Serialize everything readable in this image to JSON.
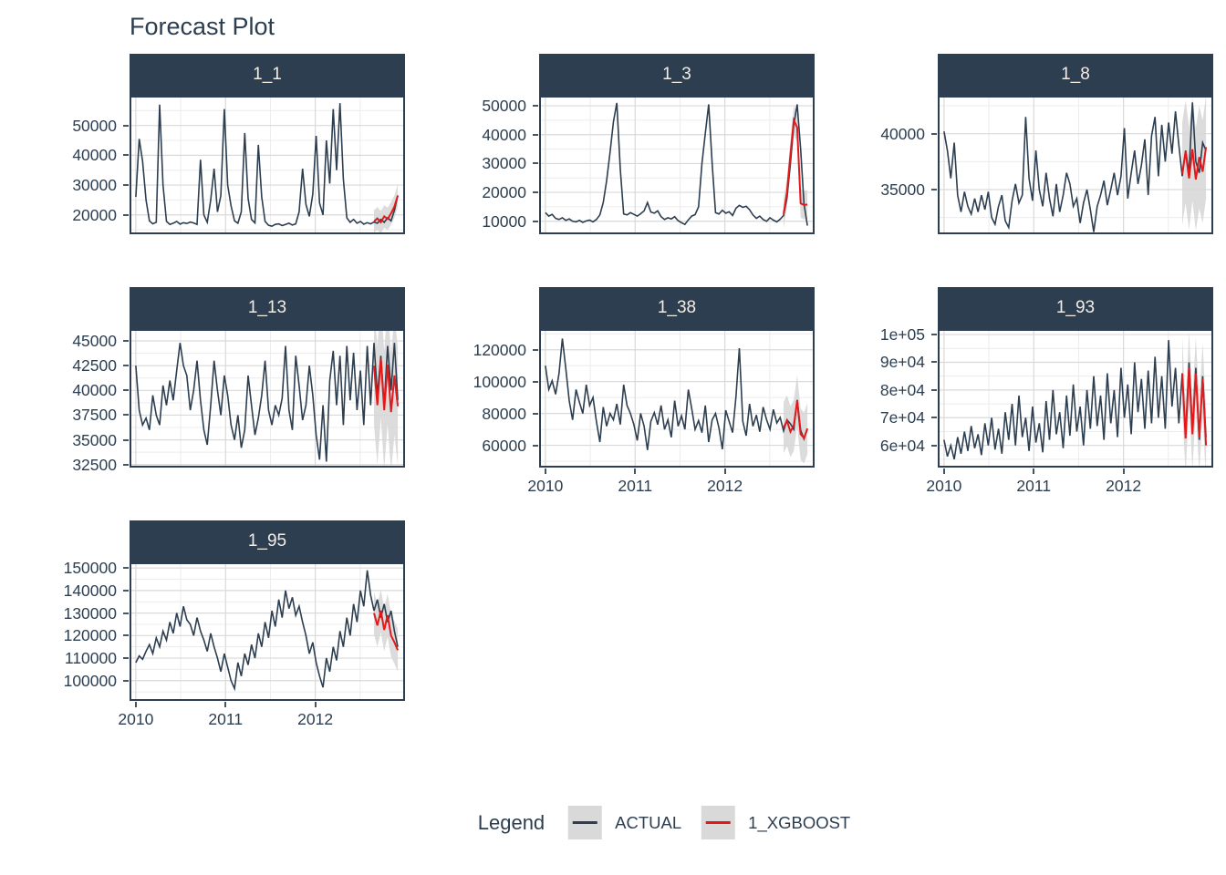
{
  "title": "Forecast Plot",
  "colors": {
    "actual_line": "#2c3e50",
    "forecast_line": "#e31a1c",
    "ribbon": "#d6d6d6",
    "grid_major": "#d9d9d9",
    "grid_minor": "#ececec",
    "strip_bg": "#2c3e50",
    "strip_text": "#f3eee5",
    "panel_border": "#2c3e50",
    "axis_text": "#2c3e50"
  },
  "legend": {
    "title": "Legend",
    "entries": [
      {
        "label": "ACTUAL",
        "color": "#2c3e50"
      },
      {
        "label": "1_XGBOOST",
        "color": "#e31a1c"
      }
    ]
  },
  "chart_data": {
    "type": "line",
    "title": "Forecast Plot",
    "x_data_range": [
      2010.0,
      2012.92
    ],
    "x_domain": [
      2009.93,
      2013.0
    ],
    "xticks": [
      2010,
      2011,
      2012
    ],
    "xtick_labels": [
      "2010",
      "2011",
      "2012"
    ],
    "grid": true,
    "legend_position": "bottom",
    "facets": [
      {
        "name": "1_1",
        "col": 0,
        "row": 0,
        "show_x_axis": false,
        "ylim": [
          13500,
          60000
        ],
        "yticks": [
          20000,
          30000,
          40000,
          50000
        ],
        "ytick_labels": [
          "20000",
          "30000",
          "40000",
          "50000"
        ],
        "actual": [
          26000,
          45500,
          38000,
          25000,
          18000,
          17000,
          17500,
          57000,
          30000,
          17800,
          16800,
          17200,
          17800,
          16900,
          17400,
          17100,
          17600,
          17300,
          16800,
          38500,
          20000,
          17500,
          25000,
          35500,
          21000,
          26500,
          55500,
          30000,
          23000,
          18000,
          17200,
          21000,
          47500,
          25500,
          18500,
          17300,
          43500,
          26000,
          17800,
          16500,
          16200,
          16800,
          17000,
          16400,
          16800,
          17200,
          16600,
          17000,
          21000,
          35500,
          23500,
          19500,
          27000,
          46500,
          24000,
          20000,
          45000,
          30500,
          55500,
          35000,
          57500,
          32000,
          19000,
          17500,
          18500,
          17200,
          17800,
          16900,
          17400,
          17000,
          17600,
          17200,
          18500,
          17500,
          19000,
          18000,
          21500,
          26500
        ],
        "forecast_start": 70,
        "forecast": [
          17800,
          18800,
          17500,
          19500,
          18600,
          20500,
          22800,
          26500
        ],
        "ci_delta": 3800
      },
      {
        "name": "1_3",
        "col": 1,
        "row": 0,
        "show_x_axis": false,
        "ylim": [
          5500,
          53500
        ],
        "yticks": [
          10000,
          20000,
          30000,
          40000,
          50000
        ],
        "ytick_labels": [
          "10000",
          "20000",
          "30000",
          "40000",
          "50000"
        ],
        "actual": [
          13000,
          11800,
          12400,
          11000,
          10600,
          11200,
          10300,
          10800,
          10000,
          9800,
          10300,
          9600,
          10100,
          10400,
          9800,
          10600,
          12200,
          16500,
          24000,
          34000,
          44500,
          51000,
          28000,
          12500,
          12200,
          13000,
          12400,
          11800,
          12600,
          13600,
          16500,
          13200,
          12800,
          13600,
          11600,
          10600,
          11200,
          10800,
          11600,
          10200,
          9500,
          8900,
          10500,
          11800,
          12300,
          15000,
          30000,
          40500,
          50500,
          30000,
          13000,
          12500,
          13800,
          12800,
          13300,
          12000,
          14500,
          15500,
          14800,
          15200,
          14000,
          12200,
          11000,
          11800,
          10600,
          10000,
          11200,
          10400,
          9800,
          10700,
          12000,
          18000,
          30000,
          43500,
          50500,
          35000,
          16000,
          8500
        ],
        "forecast_start": 70,
        "forecast": [
          12500,
          20000,
          33000,
          45000,
          42500,
          16200,
          15600,
          15800
        ],
        "ci_delta": 5000
      },
      {
        "name": "1_8",
        "col": 2,
        "row": 0,
        "show_x_axis": false,
        "ylim": [
          31000,
          43400
        ],
        "yticks": [
          35000,
          40000
        ],
        "ytick_labels": [
          "35000",
          "40000"
        ],
        "actual": [
          40200,
          38500,
          36000,
          39200,
          34500,
          33000,
          34800,
          33500,
          32800,
          34200,
          33000,
          34500,
          33200,
          34800,
          32500,
          31900,
          33500,
          34500,
          32200,
          31600,
          34000,
          35500,
          33800,
          34500,
          41500,
          36000,
          34000,
          38500,
          35000,
          33500,
          36500,
          34200,
          32600,
          35500,
          33000,
          34500,
          36500,
          35500,
          33500,
          34200,
          32000,
          33800,
          35000,
          33200,
          31200,
          33500,
          34500,
          35800,
          33600,
          35000,
          36500,
          34500,
          36200,
          40500,
          34200,
          36500,
          38500,
          35500,
          37200,
          39500,
          34500,
          39800,
          41500,
          36200,
          40800,
          37500,
          41000,
          38200,
          42000,
          39000,
          36200,
          38500,
          36500,
          42800,
          37500,
          36500,
          39200,
          38500
        ],
        "forecast_start": 70,
        "forecast": [
          36400,
          38400,
          36000,
          38600,
          35900,
          37900,
          36600,
          38800
        ],
        "ci_delta": 4600
      },
      {
        "name": "1_13",
        "col": 0,
        "row": 1,
        "show_x_axis": false,
        "ylim": [
          32200,
          46200
        ],
        "yticks": [
          32500,
          35000,
          37500,
          40000,
          42500,
          45000
        ],
        "ytick_labels": [
          "32500",
          "35000",
          "37500",
          "40000",
          "42500",
          "45000"
        ],
        "actual": [
          42500,
          38000,
          36500,
          37200,
          36000,
          39500,
          37500,
          36500,
          40500,
          38500,
          41000,
          39000,
          42000,
          44800,
          42500,
          41500,
          38000,
          40000,
          43000,
          39000,
          36000,
          34500,
          38500,
          43000,
          40000,
          37500,
          41500,
          39500,
          36500,
          35000,
          37500,
          34200,
          36000,
          41500,
          38500,
          35500,
          37200,
          39500,
          43000,
          38000,
          36500,
          38500,
          37500,
          39200,
          44500,
          38000,
          36000,
          43500,
          40500,
          37000,
          38500,
          42500,
          39500,
          35500,
          33000,
          38500,
          32800,
          41000,
          44000,
          38500,
          43500,
          36500,
          44500,
          39000,
          43800,
          38000,
          42000,
          36500,
          44500,
          38500,
          44800,
          39500,
          43500,
          38500,
          44500,
          40000,
          44800,
          39000
        ],
        "forecast_start": 70,
        "forecast": [
          42500,
          38500,
          43200,
          38000,
          42600,
          37800,
          41500,
          38400
        ],
        "ci_delta": 6000
      },
      {
        "name": "1_38",
        "col": 1,
        "row": 1,
        "show_x_axis": true,
        "ylim": [
          46000,
          133000
        ],
        "yticks": [
          60000,
          80000,
          100000,
          120000
        ],
        "ytick_labels": [
          "60000",
          "80000",
          "100000",
          "120000"
        ],
        "actual": [
          110000,
          95000,
          100500,
          92000,
          105000,
          127000,
          108000,
          88000,
          76000,
          95000,
          87000,
          80000,
          98000,
          85000,
          90000,
          75000,
          62000,
          84000,
          72000,
          80000,
          76000,
          86000,
          73000,
          98000,
          85000,
          80000,
          73000,
          63000,
          80000,
          72000,
          57000,
          75000,
          80500,
          73000,
          85000,
          70000,
          76000,
          65000,
          88000,
          72000,
          78500,
          70000,
          95000,
          83000,
          70000,
          75500,
          68000,
          85000,
          62000,
          76000,
          80000,
          71000,
          57500,
          82000,
          75000,
          68000,
          90500,
          121000,
          75000,
          66000,
          86000,
          72000,
          79000,
          68500,
          84000,
          76000,
          70000,
          82500,
          74000,
          77500,
          69000,
          76000,
          73500,
          70000,
          88500,
          69500,
          64000,
          70500
        ],
        "forecast_start": 70,
        "forecast": [
          71000,
          75500,
          68500,
          72500,
          88000,
          67000,
          64500,
          70500
        ],
        "ci_delta": 16000
      },
      {
        "name": "1_93",
        "col": 2,
        "row": 1,
        "show_x_axis": true,
        "ylim": [
          52000,
          102000
        ],
        "yticks": [
          60000,
          70000,
          80000,
          90000,
          100000
        ],
        "ytick_labels": [
          "6e+04",
          "7e+04",
          "8e+04",
          "9e+04",
          "1e+05"
        ],
        "actual": [
          62000,
          56000,
          60000,
          55000,
          63000,
          57000,
          65000,
          58000,
          67000,
          59000,
          64000,
          56500,
          68000,
          60000,
          70000,
          58500,
          66000,
          57000,
          72000,
          62000,
          75000,
          60000,
          78000,
          63000,
          70000,
          58000,
          74000,
          61000,
          68000,
          57500,
          76000,
          62000,
          80000,
          64000,
          72000,
          59000,
          78000,
          63500,
          82000,
          65000,
          74000,
          60000,
          80000,
          66000,
          85000,
          67000,
          78000,
          62000,
          86000,
          68000,
          80000,
          63000,
          88000,
          70000,
          82000,
          64000,
          90000,
          72000,
          84000,
          66000,
          87000,
          68000,
          92000,
          70000,
          85000,
          66000,
          98000,
          74000,
          88000,
          68000,
          86000,
          64000,
          90000,
          66000,
          88000,
          62000,
          85000,
          63000
        ],
        "forecast_start": 70,
        "forecast": [
          86000,
          62500,
          88000,
          64000,
          86000,
          63000,
          84000,
          60000
        ],
        "ci_delta": 13000
      },
      {
        "name": "1_95",
        "col": 0,
        "row": 2,
        "show_x_axis": true,
        "ylim": [
          91000,
          152500
        ],
        "yticks": [
          100000,
          110000,
          120000,
          130000,
          140000,
          150000
        ],
        "ytick_labels": [
          "100000",
          "110000",
          "120000",
          "130000",
          "140000",
          "150000"
        ],
        "actual": [
          108000,
          111000,
          109500,
          113000,
          116000,
          112000,
          119000,
          115000,
          122000,
          118000,
          126000,
          121000,
          130000,
          124000,
          133000,
          127000,
          125000,
          120000,
          128000,
          122000,
          118000,
          113000,
          121000,
          115000,
          110000,
          104000,
          112000,
          106000,
          100000,
          96500,
          108000,
          102000,
          112000,
          107000,
          116000,
          110000,
          121000,
          115000,
          126000,
          119000,
          131000,
          124000,
          136000,
          128000,
          140000,
          132000,
          137000,
          129000,
          133000,
          126000,
          120000,
          112000,
          117000,
          108000,
          102000,
          97000,
          110000,
          104000,
          115000,
          109000,
          122000,
          115000,
          128000,
          120000,
          134000,
          126000,
          140000,
          133000,
          149000,
          138000,
          131000,
          136000,
          128000,
          134000,
          126000,
          131000,
          122000,
          115000
        ],
        "forecast_start": 70,
        "forecast": [
          130000,
          124500,
          131000,
          122500,
          129000,
          120000,
          117000,
          113500
        ],
        "ci_delta": 9500
      }
    ]
  }
}
